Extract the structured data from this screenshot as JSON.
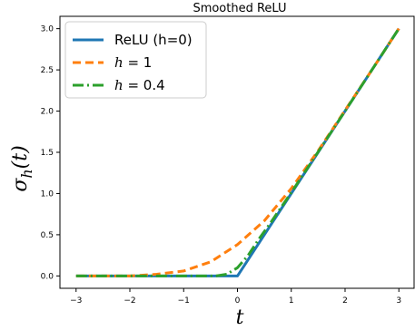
{
  "chart_data": {
    "type": "line",
    "title": "Smoothed ReLU",
    "xlabel": "t",
    "ylabel": "σ_h(t)",
    "xlim": [
      -3.3,
      3.3
    ],
    "ylim": [
      -0.15,
      3.15
    ],
    "xticks": [
      -3,
      -2,
      -1,
      0,
      1,
      2,
      3
    ],
    "xtick_labels": [
      "−3",
      "−2",
      "−1",
      "0",
      "1",
      "2",
      "3"
    ],
    "yticks": [
      0.0,
      0.5,
      1.0,
      1.5,
      2.0,
      2.5,
      3.0
    ],
    "ytick_labels": [
      "0.0",
      "0.5",
      "1.0",
      "1.5",
      "2.0",
      "2.5",
      "3.0"
    ],
    "grid": false,
    "legend_position": "top-left",
    "series": [
      {
        "name": "ReLU (h=0)",
        "h": 0,
        "color": "#1f77b4",
        "style": "solid",
        "x": [
          -3,
          -2,
          -1,
          0,
          1,
          2,
          3
        ],
        "y": [
          0,
          0,
          0,
          0,
          1,
          2,
          3
        ]
      },
      {
        "name": "h = 1",
        "h": 1,
        "color": "#ff7f0e",
        "style": "dashed",
        "x": [
          -3,
          -2.5,
          -2,
          -1.5,
          -1,
          -0.5,
          0,
          0.5,
          1,
          1.5,
          2,
          2.5,
          3
        ],
        "y": [
          0,
          0,
          0,
          0.02,
          0.06,
          0.17,
          0.38,
          0.67,
          1.06,
          1.52,
          2.01,
          2.5,
          3
        ]
      },
      {
        "name": "h = 0.4",
        "h": 0.4,
        "color": "#2ca02c",
        "style": "dashdot",
        "x": [
          -3,
          -1,
          -0.4,
          -0.2,
          0,
          0.2,
          0.4,
          0.6,
          1,
          2,
          3
        ],
        "y": [
          0,
          0,
          0,
          0.02,
          0.1,
          0.25,
          0.45,
          0.63,
          1.01,
          2.0,
          3
        ]
      }
    ]
  }
}
